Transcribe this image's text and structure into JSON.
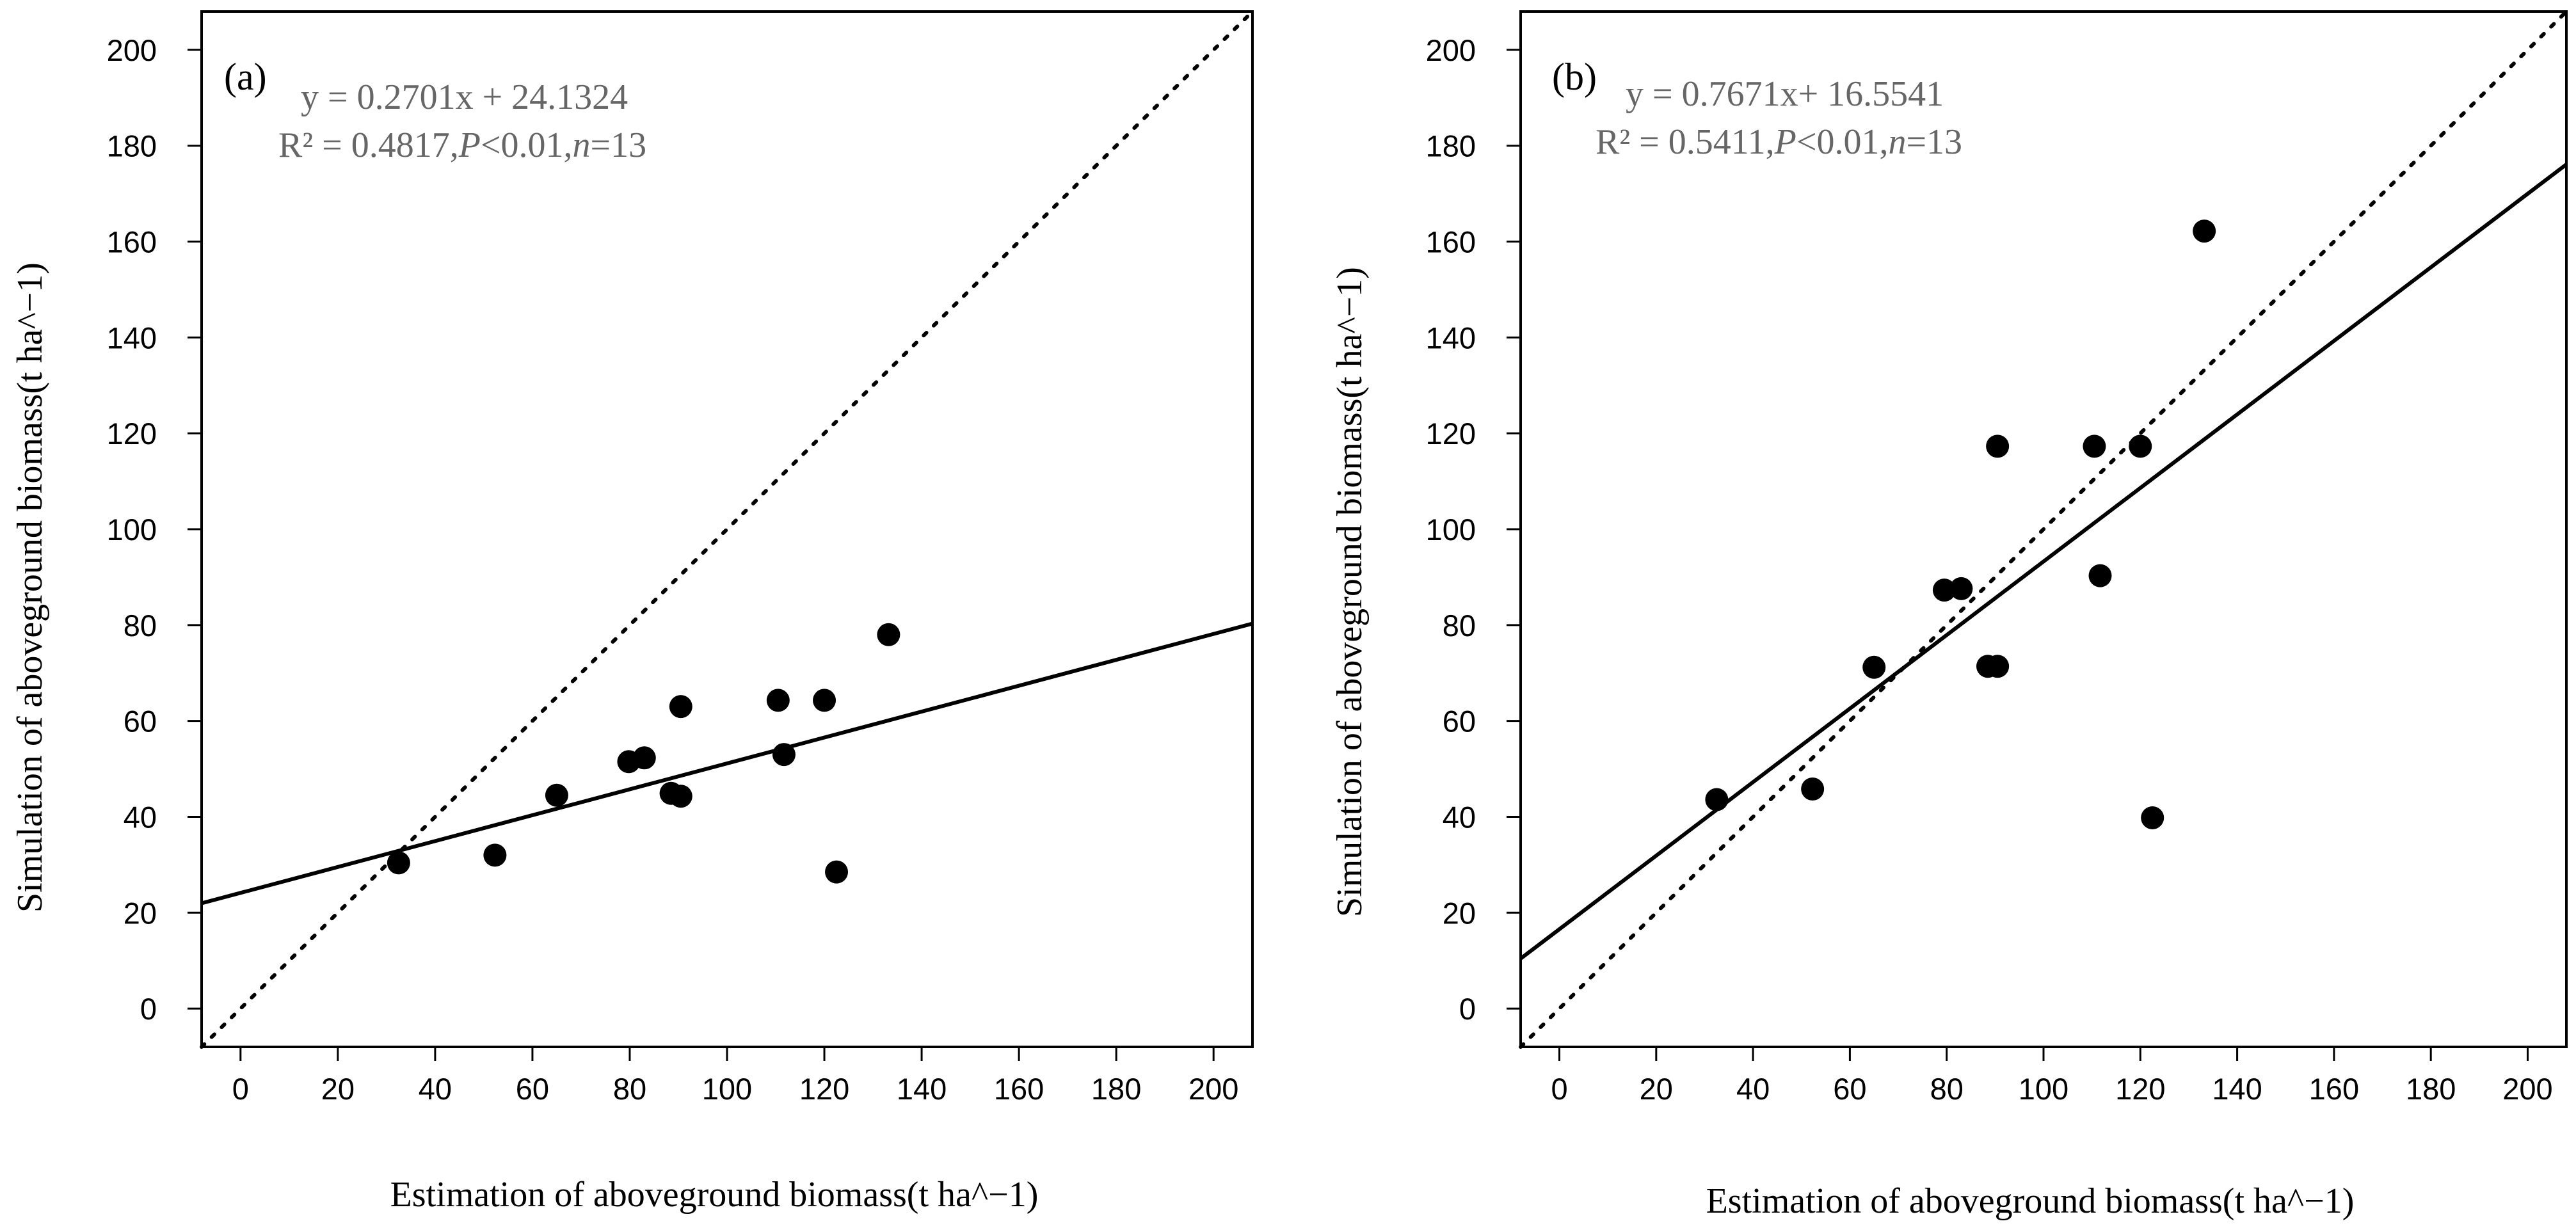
{
  "chart_data": [
    {
      "type": "scatter",
      "panel_label": "(a)",
      "equation": "y = 0.2701x + 24.1324",
      "stats_prefix": "R² = 0.4817,",
      "stats_p": "P",
      "stats_mid": "<0.01,",
      "stats_n": "n",
      "stats_suffix": "=13",
      "xlabel": "Estimation of aboveground biomass(t ha^−1)",
      "ylabel": "Simulation of aboveground biomass(t ha^−1)",
      "xlim": [
        -8,
        208
      ],
      "ylim": [
        -8,
        208
      ],
      "xticks": [
        0,
        20,
        40,
        60,
        80,
        100,
        120,
        140,
        160,
        180,
        200
      ],
      "yticks": [
        0,
        20,
        40,
        60,
        80,
        100,
        120,
        140,
        160,
        180,
        200
      ],
      "x": [
        32.5,
        52.3,
        65.0,
        79.8,
        83.0,
        88.5,
        90.5,
        90.5,
        110.5,
        111.7,
        120.0,
        122.5,
        133.2
      ],
      "y": [
        30.4,
        32.0,
        44.5,
        51.5,
        52.3,
        44.9,
        44.3,
        63.0,
        64.3,
        53.0,
        64.3,
        28.5,
        78.0
      ],
      "fit_line": {
        "slope": 0.2701,
        "intercept": 24.1324
      },
      "reference_line": {
        "slope": 1,
        "intercept": 0,
        "style": "dotted"
      },
      "grid": false
    },
    {
      "type": "scatter",
      "panel_label": "(b)",
      "equation": "y = 0.7671x+ 16.5541",
      "stats_prefix": "R² = 0.5411,",
      "stats_p": "P",
      "stats_mid": "<0.01,",
      "stats_n": "n",
      "stats_suffix": "=13",
      "xlabel": "Estimation of aboveground biomass(t ha^−1)",
      "ylabel": "Simulation of aboveground biomass(t ha^−1)",
      "xlim": [
        -8,
        208
      ],
      "ylim": [
        -8,
        208
      ],
      "xticks": [
        0,
        20,
        40,
        60,
        80,
        100,
        120,
        140,
        160,
        180,
        200
      ],
      "yticks": [
        0,
        20,
        40,
        60,
        80,
        100,
        120,
        140,
        160,
        180,
        200
      ],
      "x": [
        32.5,
        52.3,
        65.0,
        79.5,
        83.0,
        88.5,
        90.5,
        90.5,
        110.5,
        111.7,
        120.0,
        122.5,
        133.2
      ],
      "y": [
        43.6,
        45.8,
        71.2,
        87.3,
        87.6,
        71.4,
        71.4,
        117.3,
        117.3,
        90.3,
        117.3,
        39.8,
        162.2
      ],
      "fit_line": {
        "slope": 0.7671,
        "intercept": 16.5541
      },
      "reference_line": {
        "slope": 1,
        "intercept": 0,
        "style": "dotted"
      },
      "grid": false
    }
  ]
}
